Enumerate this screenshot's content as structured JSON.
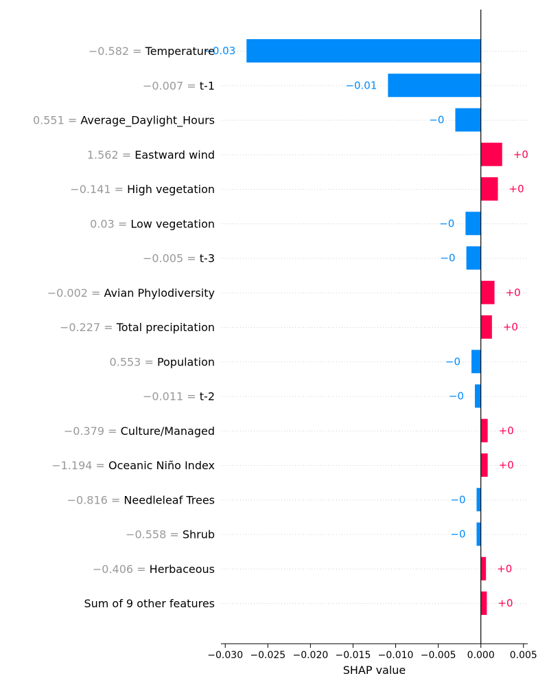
{
  "chart_data": {
    "type": "bar",
    "orientation": "horizontal",
    "xlabel": "SHAP value",
    "xlim": [
      -0.0305,
      0.0055
    ],
    "x_ticks": [
      -0.03,
      -0.025,
      -0.02,
      -0.015,
      -0.01,
      -0.005,
      0.0,
      0.005
    ],
    "x_tick_labels": [
      "−0.030",
      "−0.025",
      "−0.020",
      "−0.015",
      "−0.010",
      "−0.005",
      "0.000",
      "0.005"
    ],
    "grid": "dotted horizontal per row",
    "colors": {
      "positive": "#ff0051",
      "negative": "#008bfb",
      "feature_value": "#999999",
      "feature_name": "#000000"
    },
    "features": [
      {
        "value_text": "−0.582 =",
        "name": "Temperature",
        "shap": -0.0275,
        "label": "−0.03"
      },
      {
        "value_text": "−0.007 =",
        "name": "t-1",
        "shap": -0.0109,
        "label": "−0.01"
      },
      {
        "value_text": "0.551 =",
        "name": "Average_Daylight_Hours",
        "shap": -0.003,
        "label": "−0"
      },
      {
        "value_text": "1.562 =",
        "name": "Eastward wind",
        "shap": 0.0025,
        "label": "+0"
      },
      {
        "value_text": "−0.141 =",
        "name": "High vegetation",
        "shap": 0.002,
        "label": "+0"
      },
      {
        "value_text": "0.03 =",
        "name": "Low vegetation",
        "shap": -0.0018,
        "label": "−0"
      },
      {
        "value_text": "−0.005 =",
        "name": "t-3",
        "shap": -0.0017,
        "label": "−0"
      },
      {
        "value_text": "−0.002 =",
        "name": "Avian Phylodiversity",
        "shap": 0.0016,
        "label": "+0"
      },
      {
        "value_text": "−0.227 =",
        "name": "Total precipitation",
        "shap": 0.0013,
        "label": "+0"
      },
      {
        "value_text": "0.553 =",
        "name": "Population",
        "shap": -0.0011,
        "label": "−0"
      },
      {
        "value_text": "−0.011 =",
        "name": "t-2",
        "shap": -0.0007,
        "label": "−0"
      },
      {
        "value_text": "−0.379 =",
        "name": "Culture/Managed",
        "shap": 0.0008,
        "label": "+0"
      },
      {
        "value_text": "−1.194 =",
        "name": "Oceanic Niño Index",
        "shap": 0.0008,
        "label": "+0"
      },
      {
        "value_text": "−0.816 =",
        "name": "Needleleaf Trees",
        "shap": -0.0005,
        "label": "−0"
      },
      {
        "value_text": "−0.558 =",
        "name": "Shrub",
        "shap": -0.0005,
        "label": "−0"
      },
      {
        "value_text": "−0.406 =",
        "name": "Herbaceous",
        "shap": 0.0006,
        "label": "+0"
      },
      {
        "value_text": "",
        "name": "Sum of 9 other features",
        "shap": 0.0007,
        "label": "+0"
      }
    ]
  }
}
